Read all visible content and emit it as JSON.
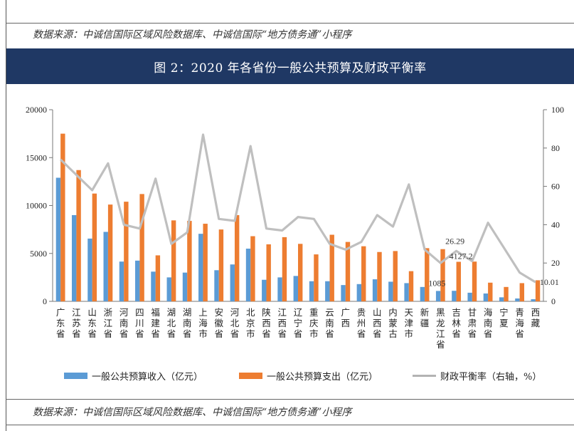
{
  "source_top": "数据来源：中诚信国际区域风险数据库、中诚信国际“地方债务通”小程序",
  "source_bottom": "数据来源：中诚信国际区域风险数据库、中诚信国际“地方债务通”小程序",
  "figure_title": "图 2：2020 年各省份一般公共预算及财政平衡率",
  "colors": {
    "income": "#5b9bd5",
    "expense": "#ed7d31",
    "ratio": "#bfbfbf",
    "title_bg": "#1f3864"
  },
  "legend": {
    "income": "一般公共预算收入（亿元）",
    "expense": "一般公共预算支出（亿元）",
    "ratio": "财政平衡率（右轴，%）"
  },
  "chart_data": {
    "type": "bar",
    "categories": [
      "广东省",
      "江苏省",
      "山东省",
      "浙江省",
      "河南省",
      "四川省",
      "福建省",
      "湖北省",
      "湖南省",
      "上海市",
      "安徽省",
      "河北省",
      "北京市",
      "陕西省",
      "江西省",
      "辽宁省",
      "重庆市",
      "云南省",
      "广西",
      "贵州省",
      "山西省",
      "内蒙古",
      "天津市",
      "新疆",
      "黑龙江省",
      "吉林省",
      "甘肃省",
      "海南省",
      "宁夏",
      "青海省",
      "西藏"
    ],
    "series": [
      {
        "name": "一般公共预算收入（亿元）",
        "axis": "left",
        "values": [
          12900,
          9000,
          6550,
          7250,
          4150,
          4250,
          3100,
          2500,
          3000,
          7050,
          3250,
          3850,
          5500,
          2250,
          2500,
          2650,
          2100,
          2100,
          1700,
          1800,
          2300,
          2050,
          1900,
          1500,
          1085,
          1100,
          900,
          820,
          420,
          300,
          220
        ]
      },
      {
        "name": "一般公共预算支出（亿元）",
        "axis": "left",
        "values": [
          17500,
          13700,
          11250,
          10100,
          10400,
          11200,
          4800,
          8450,
          8400,
          8100,
          7500,
          9000,
          6800,
          5950,
          6700,
          6000,
          4900,
          6950,
          6200,
          5750,
          5150,
          5250,
          3150,
          5550,
          5450,
          4127.2,
          4150,
          1950,
          1500,
          1900,
          2200
        ]
      },
      {
        "name": "财政平衡率（右轴，%）",
        "axis": "right",
        "values": [
          74,
          66,
          58,
          72,
          40,
          38,
          64,
          30,
          36,
          87,
          43,
          42,
          81,
          38,
          37,
          44,
          43,
          30,
          27,
          31,
          45,
          39,
          61,
          27,
          20,
          26.29,
          21,
          41,
          28,
          15,
          10.01
        ]
      }
    ],
    "annotations": [
      {
        "category": "黑龙江省",
        "series": "一般公共预算收入（亿元）",
        "text": "1085"
      },
      {
        "category": "吉林省",
        "series": "一般公共预算支出（亿元）",
        "text": "4127.2"
      },
      {
        "category": "吉林省",
        "series": "财政平衡率（右轴，%）",
        "text": "26.29"
      },
      {
        "category": "西藏",
        "series": "财政平衡率（右轴，%）",
        "text": "10.01"
      }
    ],
    "y_left": {
      "min": 0,
      "max": 20000,
      "ticks": [
        0,
        5000,
        10000,
        15000,
        20000
      ]
    },
    "y_right": {
      "min": 0,
      "max": 100,
      "ticks": [
        0,
        20,
        40,
        60,
        80,
        100
      ]
    },
    "legend_position": "bottom",
    "grid": false
  }
}
